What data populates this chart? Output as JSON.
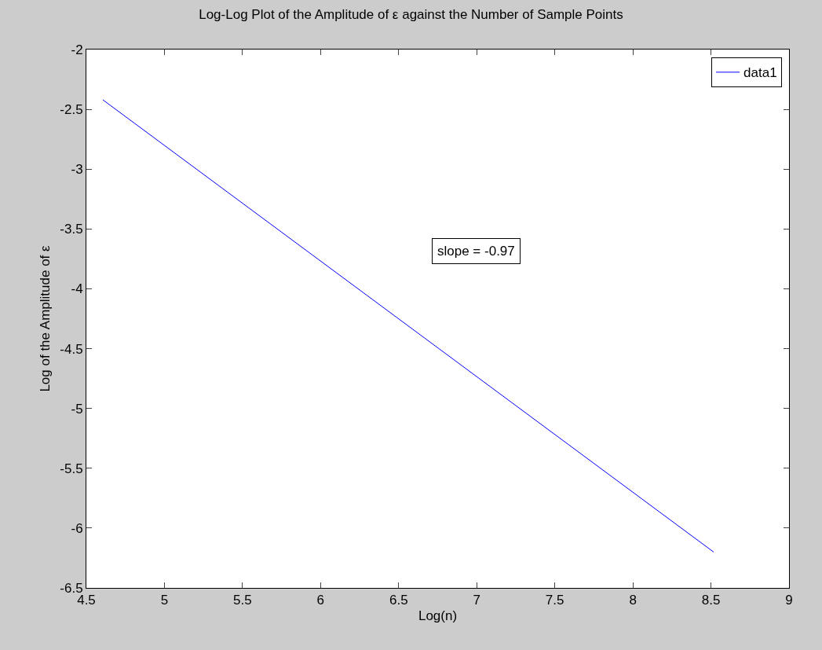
{
  "chart_data": {
    "type": "line",
    "title": "Log-Log Plot of the Amplitude of ε against the Number of Sample Points",
    "xlabel": "Log(n)",
    "ylabel": "Log of the Amplitude of ε",
    "x": [
      4.605,
      8.517
    ],
    "series": [
      {
        "name": "data1",
        "color": "#0000ff",
        "values": [
          -2.42,
          -6.2
        ]
      }
    ],
    "annotations": [
      "slope = -0.97"
    ],
    "xlim": [
      4.5,
      9
    ],
    "xticks": [
      4.5,
      5,
      5.5,
      6,
      6.5,
      7,
      7.5,
      8,
      8.5,
      9
    ],
    "ylim": [
      -6.5,
      -2
    ],
    "yticks": [
      -6.5,
      -6,
      -5.5,
      -5,
      -4.5,
      -4,
      -3.5,
      -3,
      -2.5,
      -2
    ],
    "legend": "top right",
    "marker": "none",
    "line_style": "solid"
  }
}
